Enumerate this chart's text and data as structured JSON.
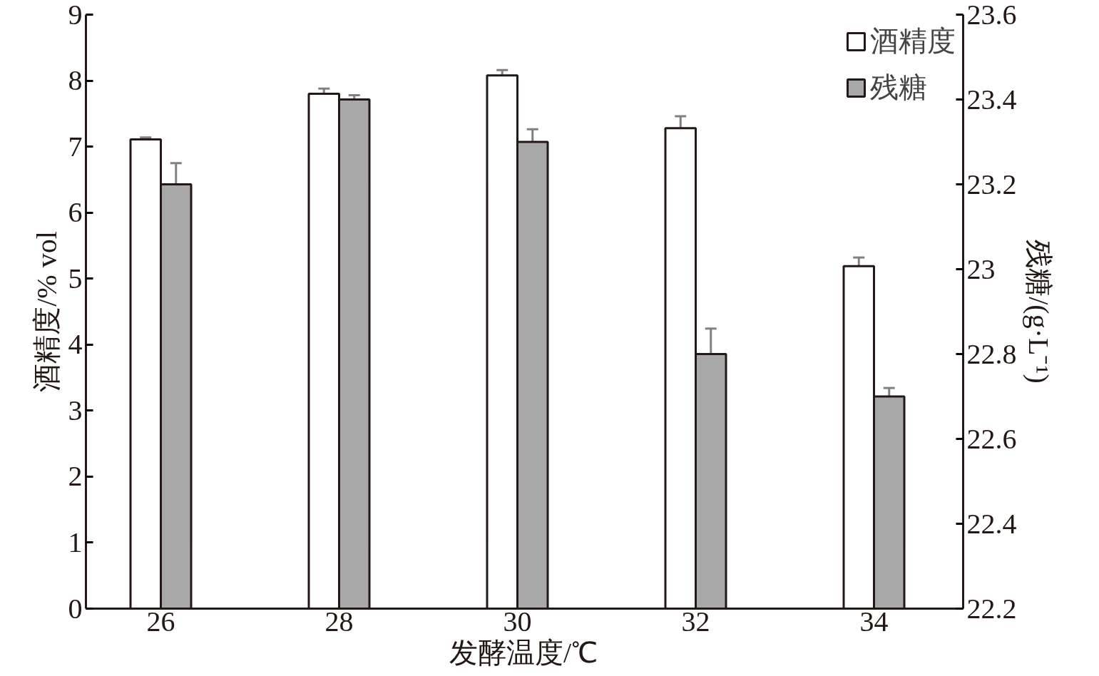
{
  "chart_data": {
    "type": "bar",
    "xlabel": "发酵温度/℃",
    "ylabel": "酒精度/% vol",
    "y2label": "残糖/(g·L⁻¹)",
    "categories": [
      "26",
      "28",
      "30",
      "32",
      "34"
    ],
    "series": [
      {
        "name": "酒精度",
        "color": "#ffffff",
        "values": [
          7.11,
          7.8,
          8.08,
          7.28,
          5.19
        ],
        "errors": [
          0.03,
          0.08,
          0.08,
          0.18,
          0.13
        ]
      },
      {
        "name": "残糖",
        "color": "#a8a8a8",
        "axis": "y2",
        "values": [
          23.2,
          23.4,
          23.3,
          22.8,
          22.7
        ],
        "errors": [
          0.05,
          0.01,
          0.03,
          0.06,
          0.02
        ]
      }
    ],
    "ylim": [
      0,
      9
    ],
    "yticks": [
      0,
      1,
      2,
      3,
      4,
      5,
      6,
      7,
      8,
      9
    ],
    "y2lim": [
      22.2,
      23.6
    ],
    "y2ticks": [
      {
        "value": 22.2,
        "label": "22.2"
      },
      {
        "value": 22.4,
        "label": "22.4"
      },
      {
        "value": 22.6,
        "label": "22.6"
      },
      {
        "value": 22.8,
        "label": "22.8"
      },
      {
        "value": 23,
        "label": "23"
      },
      {
        "value": 23.2,
        "label": "23.2"
      },
      {
        "value": 23.4,
        "label": "23.4"
      },
      {
        "value": 23.6,
        "label": "23.6"
      }
    ],
    "grid": false,
    "legend": "top right"
  }
}
